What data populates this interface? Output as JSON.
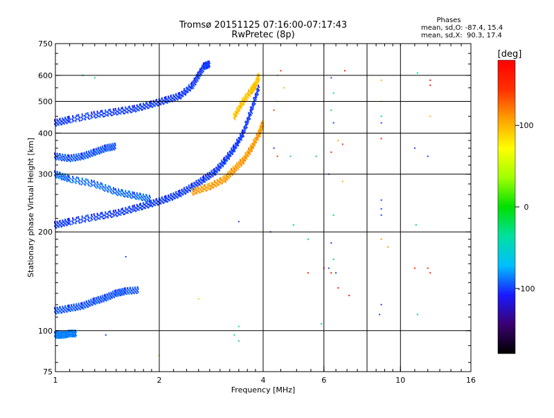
{
  "chart_data": {
    "type": "scatter",
    "title": "Tromsø 20151125 07:16:00-07:17:43",
    "subtitle": "RwPretec (8p)",
    "xlabel": "Frequency [MHz]",
    "ylabel": "Stationary phase Virtual Height [km]",
    "x_scale": "log",
    "y_scale": "log",
    "xlim": [
      1,
      16
    ],
    "ylim": [
      75,
      750
    ],
    "x_ticks": [
      1,
      2,
      4,
      6,
      10,
      16
    ],
    "x_gridlines": [
      2,
      4,
      6,
      8,
      10
    ],
    "y_ticks": [
      75,
      100,
      200,
      300,
      400,
      500,
      600,
      750
    ],
    "grid": true,
    "stats": {
      "header": "Phases",
      "line_o": "mean, sd,O: -87.4, 15.4",
      "line_x": "mean, sd,X:  90.3, 17.4"
    },
    "colorbar": {
      "label": "[deg]",
      "range": [
        -180,
        180
      ],
      "ticks": [
        100,
        0,
        -100
      ],
      "colors": [
        "#000000",
        "#3a0070",
        "#1a1aff",
        "#00bfff",
        "#00e0a0",
        "#00e000",
        "#a0ff00",
        "#ffff00",
        "#ffa000",
        "#ff3000",
        "#ff0000"
      ]
    },
    "traces": [
      {
        "name": "",
        "phase": -100,
        "points": [
          [
            1.0,
            210
          ],
          [
            1.1,
            215
          ],
          [
            1.3,
            222
          ],
          [
            1.5,
            228
          ],
          [
            1.7,
            236
          ],
          [
            1.9,
            244
          ],
          [
            2.1,
            252
          ],
          [
            2.3,
            262
          ],
          [
            2.5,
            275
          ],
          [
            2.7,
            290
          ],
          [
            2.9,
            305
          ],
          [
            3.1,
            330
          ],
          [
            3.3,
            360
          ],
          [
            3.5,
            400
          ],
          [
            3.7,
            470
          ],
          [
            3.9,
            560
          ]
        ]
      },
      {
        "name": "",
        "phase": -90,
        "points": [
          [
            1.0,
            300
          ],
          [
            1.1,
            290
          ],
          [
            1.3,
            280
          ],
          [
            1.5,
            265
          ],
          [
            1.7,
            258
          ],
          [
            1.9,
            252
          ]
        ]
      },
      {
        "name": "",
        "phase": -100,
        "points": [
          [
            1.0,
            430
          ],
          [
            1.1,
            440
          ],
          [
            1.3,
            455
          ],
          [
            1.5,
            465
          ],
          [
            1.7,
            475
          ],
          [
            1.9,
            490
          ],
          [
            2.1,
            505
          ],
          [
            2.3,
            520
          ],
          [
            2.5,
            560
          ],
          [
            2.6,
            600
          ],
          [
            2.7,
            640
          ],
          [
            2.8,
            650
          ]
        ]
      },
      {
        "name": "",
        "phase": -95,
        "points": [
          [
            1.0,
            340
          ],
          [
            1.1,
            335
          ],
          [
            1.2,
            340
          ],
          [
            1.3,
            350
          ],
          [
            1.4,
            360
          ],
          [
            1.5,
            365
          ]
        ]
      },
      {
        "name": "",
        "phase": -95,
        "points": [
          [
            1.0,
            115
          ],
          [
            1.1,
            117
          ],
          [
            1.2,
            119
          ],
          [
            1.3,
            123
          ],
          [
            1.4,
            126
          ],
          [
            1.5,
            130
          ],
          [
            1.6,
            132
          ],
          [
            1.75,
            133
          ]
        ]
      },
      {
        "name": "",
        "phase": -85,
        "points": [
          [
            1.0,
            97
          ],
          [
            1.05,
            97
          ],
          [
            1.1,
            98
          ],
          [
            1.15,
            98
          ]
        ]
      },
      {
        "name": "",
        "phase": 110,
        "points": [
          [
            2.5,
            265
          ],
          [
            2.8,
            275
          ],
          [
            3.1,
            290
          ],
          [
            3.3,
            310
          ],
          [
            3.5,
            330
          ],
          [
            3.7,
            360
          ],
          [
            3.9,
            400
          ],
          [
            4.0,
            430
          ]
        ]
      },
      {
        "name": "",
        "phase": 95,
        "points": [
          [
            3.3,
            450
          ],
          [
            3.5,
            500
          ],
          [
            3.7,
            540
          ],
          [
            3.8,
            560
          ],
          [
            3.9,
            600
          ]
        ]
      }
    ],
    "scatter_points": [
      {
        "x": 6.3,
        "y": 590,
        "phase": -100
      },
      {
        "x": 6.9,
        "y": 620,
        "phase": 160
      },
      {
        "x": 8.8,
        "y": 580,
        "phase": 100
      },
      {
        "x": 11.2,
        "y": 610,
        "phase": -30
      },
      {
        "x": 12.2,
        "y": 580,
        "phase": 165
      },
      {
        "x": 12.2,
        "y": 560,
        "phase": 165
      },
      {
        "x": 6.4,
        "y": 530,
        "phase": -60
      },
      {
        "x": 6.3,
        "y": 470,
        "phase": -20
      },
      {
        "x": 6.4,
        "y": 430,
        "phase": -100
      },
      {
        "x": 8.8,
        "y": 500,
        "phase": 100
      },
      {
        "x": 8.8,
        "y": 450,
        "phase": -30
      },
      {
        "x": 8.8,
        "y": 430,
        "phase": -100
      },
      {
        "x": 12.2,
        "y": 450,
        "phase": 100
      },
      {
        "x": 6.6,
        "y": 380,
        "phase": 100
      },
      {
        "x": 6.8,
        "y": 370,
        "phase": 155
      },
      {
        "x": 6.3,
        "y": 350,
        "phase": 155
      },
      {
        "x": 8.8,
        "y": 385,
        "phase": 150
      },
      {
        "x": 11.0,
        "y": 360,
        "phase": -100
      },
      {
        "x": 12.0,
        "y": 340,
        "phase": -100
      },
      {
        "x": 6.2,
        "y": 300,
        "phase": -100
      },
      {
        "x": 6.8,
        "y": 285,
        "phase": 100
      },
      {
        "x": 8.8,
        "y": 250,
        "phase": -100
      },
      {
        "x": 8.8,
        "y": 235,
        "phase": -100
      },
      {
        "x": 8.8,
        "y": 225,
        "phase": -100
      },
      {
        "x": 6.4,
        "y": 225,
        "phase": -20
      },
      {
        "x": 5.7,
        "y": 340,
        "phase": -20
      },
      {
        "x": 5.4,
        "y": 190,
        "phase": -20
      },
      {
        "x": 6.3,
        "y": 185,
        "phase": -100
      },
      {
        "x": 6.4,
        "y": 165,
        "phase": -20
      },
      {
        "x": 6.2,
        "y": 155,
        "phase": -100
      },
      {
        "x": 6.0,
        "y": 155,
        "phase": 155
      },
      {
        "x": 6.3,
        "y": 150,
        "phase": 155
      },
      {
        "x": 6.5,
        "y": 150,
        "phase": -100
      },
      {
        "x": 6.6,
        "y": 135,
        "phase": 155
      },
      {
        "x": 7.1,
        "y": 128,
        "phase": 160
      },
      {
        "x": 8.8,
        "y": 190,
        "phase": 110
      },
      {
        "x": 9.2,
        "y": 180,
        "phase": 110
      },
      {
        "x": 8.8,
        "y": 120,
        "phase": -100
      },
      {
        "x": 8.7,
        "y": 112,
        "phase": -100
      },
      {
        "x": 11.2,
        "y": 112,
        "phase": -30
      },
      {
        "x": 11.0,
        "y": 155,
        "phase": 150
      },
      {
        "x": 12.0,
        "y": 155,
        "phase": 150
      },
      {
        "x": 12.2,
        "y": 150,
        "phase": 160
      },
      {
        "x": 11.1,
        "y": 210,
        "phase": -30
      },
      {
        "x": 5.9,
        "y": 105,
        "phase": -30
      },
      {
        "x": 5.4,
        "y": 150,
        "phase": 160
      },
      {
        "x": 4.4,
        "y": 500,
        "phase": 100
      },
      {
        "x": 4.3,
        "y": 470,
        "phase": 140
      },
      {
        "x": 4.4,
        "y": 340,
        "phase": 140
      },
      {
        "x": 4.3,
        "y": 360,
        "phase": -100
      },
      {
        "x": 4.6,
        "y": 550,
        "phase": 100
      },
      {
        "x": 4.4,
        "y": 600,
        "phase": 100
      },
      {
        "x": 4.5,
        "y": 620,
        "phase": 160
      },
      {
        "x": 4.8,
        "y": 340,
        "phase": -30
      },
      {
        "x": 4.9,
        "y": 210,
        "phase": -20
      },
      {
        "x": 4.2,
        "y": 200,
        "phase": -100
      },
      {
        "x": 2.6,
        "y": 125,
        "phase": 90
      },
      {
        "x": 3.3,
        "y": 97,
        "phase": -30
      },
      {
        "x": 3.4,
        "y": 93,
        "phase": -30
      },
      {
        "x": 2.0,
        "y": 84,
        "phase": 90
      },
      {
        "x": 3.4,
        "y": 103,
        "phase": -30
      },
      {
        "x": 3.4,
        "y": 215,
        "phase": -100
      },
      {
        "x": 1.6,
        "y": 168,
        "phase": -100
      },
      {
        "x": 1.4,
        "y": 97,
        "phase": -100
      },
      {
        "x": 1.3,
        "y": 590,
        "phase": -30
      },
      {
        "x": 1.2,
        "y": 600,
        "phase": -30
      }
    ]
  }
}
